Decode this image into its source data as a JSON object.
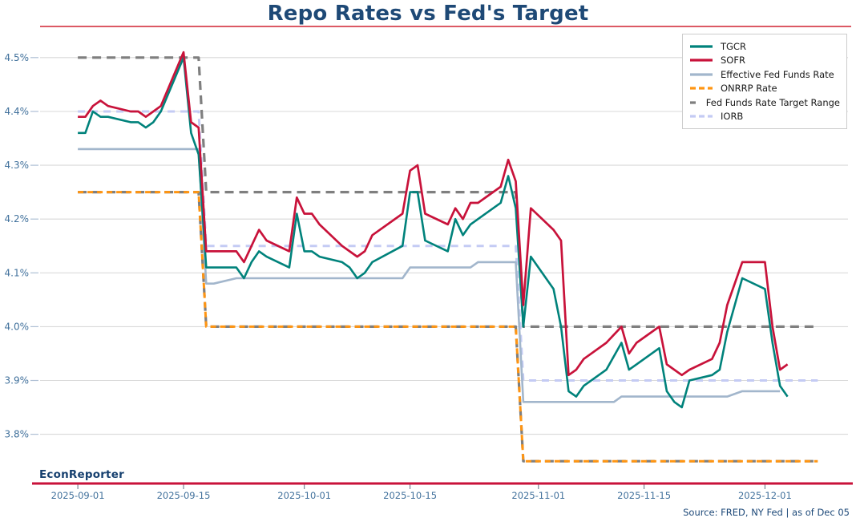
{
  "page": {
    "title": "Repo Rates vs Fed's Target",
    "branding": "EconReporter",
    "source_note": "Source: FRED, NY Fed | as of Dec 05",
    "rule_color": "#dc5964",
    "spine_color": "#c8123a",
    "title_color": "#1e4976",
    "tick_label_color": "#41719c"
  },
  "chart_data": {
    "type": "line",
    "title": "Repo Rates vs Fed's Target",
    "xlabel": "",
    "ylabel": "",
    "grid": "horizontal",
    "legend_position": "upper right",
    "y_axis": {
      "range": [
        3.71,
        4.54
      ],
      "ticks": [
        {
          "value": 3.8,
          "label": "3.8%"
        },
        {
          "value": 3.9,
          "label": "3.9%"
        },
        {
          "value": 4.0,
          "label": "4.0%"
        },
        {
          "value": 4.1,
          "label": "4.1%"
        },
        {
          "value": 4.2,
          "label": "4.2%"
        },
        {
          "value": 4.3,
          "label": "4.3%"
        },
        {
          "value": 4.4,
          "label": "4.4%"
        },
        {
          "value": 4.5,
          "label": "4.5%"
        }
      ]
    },
    "x_axis": {
      "range": [
        "2025-08-27",
        "2025-12-12"
      ],
      "ticks": [
        {
          "date": "2025-09-01",
          "label": "2025-09-01"
        },
        {
          "date": "2025-09-15",
          "label": "2025-09-15"
        },
        {
          "date": "2025-10-01",
          "label": "2025-10-01"
        },
        {
          "date": "2025-10-15",
          "label": "2025-10-15"
        },
        {
          "date": "2025-11-01",
          "label": "2025-11-01"
        },
        {
          "date": "2025-11-15",
          "label": "2025-11-15"
        },
        {
          "date": "2025-12-01",
          "label": "2025-12-01"
        }
      ]
    },
    "series": [
      {
        "name": "TGCR",
        "color": "#00827b",
        "width": 2.6,
        "z": 7,
        "data": [
          [
            "2025-09-01",
            4.36
          ],
          [
            "2025-09-02",
            4.36
          ],
          [
            "2025-09-03",
            4.4
          ],
          [
            "2025-09-04",
            4.39
          ],
          [
            "2025-09-05",
            4.39
          ],
          [
            "2025-09-08",
            4.38
          ],
          [
            "2025-09-09",
            4.38
          ],
          [
            "2025-09-10",
            4.37
          ],
          [
            "2025-09-11",
            4.38
          ],
          [
            "2025-09-12",
            4.4
          ],
          [
            "2025-09-15",
            4.5
          ],
          [
            "2025-09-16",
            4.36
          ],
          [
            "2025-09-17",
            4.32
          ],
          [
            "2025-09-18",
            4.11
          ],
          [
            "2025-09-19",
            4.11
          ],
          [
            "2025-09-22",
            4.11
          ],
          [
            "2025-09-23",
            4.09
          ],
          [
            "2025-09-24",
            4.12
          ],
          [
            "2025-09-25",
            4.14
          ],
          [
            "2025-09-26",
            4.13
          ],
          [
            "2025-09-29",
            4.11
          ],
          [
            "2025-09-30",
            4.21
          ],
          [
            "2025-10-01",
            4.14
          ],
          [
            "2025-10-02",
            4.14
          ],
          [
            "2025-10-03",
            4.13
          ],
          [
            "2025-10-06",
            4.12
          ],
          [
            "2025-10-07",
            4.11
          ],
          [
            "2025-10-08",
            4.09
          ],
          [
            "2025-10-09",
            4.1
          ],
          [
            "2025-10-10",
            4.12
          ],
          [
            "2025-10-14",
            4.15
          ],
          [
            "2025-10-15",
            4.25
          ],
          [
            "2025-10-16",
            4.25
          ],
          [
            "2025-10-17",
            4.16
          ],
          [
            "2025-10-20",
            4.14
          ],
          [
            "2025-10-21",
            4.2
          ],
          [
            "2025-10-22",
            4.17
          ],
          [
            "2025-10-23",
            4.19
          ],
          [
            "2025-10-24",
            4.2
          ],
          [
            "2025-10-27",
            4.23
          ],
          [
            "2025-10-28",
            4.28
          ],
          [
            "2025-10-29",
            4.22
          ],
          [
            "2025-10-30",
            4.0
          ],
          [
            "2025-10-31",
            4.13
          ],
          [
            "2025-11-03",
            4.07
          ],
          [
            "2025-11-04",
            4.0
          ],
          [
            "2025-11-05",
            3.88
          ],
          [
            "2025-11-06",
            3.87
          ],
          [
            "2025-11-07",
            3.89
          ],
          [
            "2025-11-10",
            3.92
          ],
          [
            "2025-11-12",
            3.97
          ],
          [
            "2025-11-13",
            3.92
          ],
          [
            "2025-11-14",
            3.93
          ],
          [
            "2025-11-17",
            3.96
          ],
          [
            "2025-11-18",
            3.88
          ],
          [
            "2025-11-19",
            3.86
          ],
          [
            "2025-11-20",
            3.85
          ],
          [
            "2025-11-21",
            3.9
          ],
          [
            "2025-11-24",
            3.91
          ],
          [
            "2025-11-25",
            3.92
          ],
          [
            "2025-11-26",
            3.99
          ],
          [
            "2025-11-28",
            4.09
          ],
          [
            "2025-12-01",
            4.07
          ],
          [
            "2025-12-02",
            3.97
          ],
          [
            "2025-12-03",
            3.89
          ],
          [
            "2025-12-04",
            3.87
          ]
        ]
      },
      {
        "name": "SOFR",
        "color": "#c8123a",
        "width": 2.7,
        "z": 8,
        "data": [
          [
            "2025-09-01",
            4.39
          ],
          [
            "2025-09-02",
            4.39
          ],
          [
            "2025-09-03",
            4.41
          ],
          [
            "2025-09-04",
            4.42
          ],
          [
            "2025-09-05",
            4.41
          ],
          [
            "2025-09-08",
            4.4
          ],
          [
            "2025-09-09",
            4.4
          ],
          [
            "2025-09-10",
            4.39
          ],
          [
            "2025-09-11",
            4.4
          ],
          [
            "2025-09-12",
            4.41
          ],
          [
            "2025-09-15",
            4.51
          ],
          [
            "2025-09-16",
            4.38
          ],
          [
            "2025-09-17",
            4.37
          ],
          [
            "2025-09-18",
            4.14
          ],
          [
            "2025-09-19",
            4.14
          ],
          [
            "2025-09-22",
            4.14
          ],
          [
            "2025-09-23",
            4.12
          ],
          [
            "2025-09-24",
            4.15
          ],
          [
            "2025-09-25",
            4.18
          ],
          [
            "2025-09-26",
            4.16
          ],
          [
            "2025-09-29",
            4.14
          ],
          [
            "2025-09-30",
            4.24
          ],
          [
            "2025-10-01",
            4.21
          ],
          [
            "2025-10-02",
            4.21
          ],
          [
            "2025-10-03",
            4.19
          ],
          [
            "2025-10-06",
            4.15
          ],
          [
            "2025-10-07",
            4.14
          ],
          [
            "2025-10-08",
            4.13
          ],
          [
            "2025-10-09",
            4.14
          ],
          [
            "2025-10-10",
            4.17
          ],
          [
            "2025-10-14",
            4.21
          ],
          [
            "2025-10-15",
            4.29
          ],
          [
            "2025-10-16",
            4.3
          ],
          [
            "2025-10-17",
            4.21
          ],
          [
            "2025-10-20",
            4.19
          ],
          [
            "2025-10-21",
            4.22
          ],
          [
            "2025-10-22",
            4.2
          ],
          [
            "2025-10-23",
            4.23
          ],
          [
            "2025-10-24",
            4.23
          ],
          [
            "2025-10-27",
            4.26
          ],
          [
            "2025-10-28",
            4.31
          ],
          [
            "2025-10-29",
            4.27
          ],
          [
            "2025-10-30",
            4.04
          ],
          [
            "2025-10-31",
            4.22
          ],
          [
            "2025-11-03",
            4.18
          ],
          [
            "2025-11-04",
            4.16
          ],
          [
            "2025-11-05",
            3.91
          ],
          [
            "2025-11-06",
            3.92
          ],
          [
            "2025-11-07",
            3.94
          ],
          [
            "2025-11-10",
            3.97
          ],
          [
            "2025-11-12",
            4.0
          ],
          [
            "2025-11-13",
            3.95
          ],
          [
            "2025-11-14",
            3.97
          ],
          [
            "2025-11-17",
            4.0
          ],
          [
            "2025-11-18",
            3.93
          ],
          [
            "2025-11-19",
            3.92
          ],
          [
            "2025-11-20",
            3.91
          ],
          [
            "2025-11-21",
            3.92
          ],
          [
            "2025-11-24",
            3.94
          ],
          [
            "2025-11-25",
            3.97
          ],
          [
            "2025-11-26",
            4.04
          ],
          [
            "2025-11-28",
            4.12
          ],
          [
            "2025-12-01",
            4.12
          ],
          [
            "2025-12-02",
            4.0
          ],
          [
            "2025-12-03",
            3.92
          ],
          [
            "2025-12-04",
            3.93
          ]
        ]
      },
      {
        "name": "Effective Fed Funds Rate",
        "color": "#a2b6cc",
        "width": 2.6,
        "z": 6,
        "data": [
          [
            "2025-09-01",
            4.33
          ],
          [
            "2025-09-17",
            4.33
          ],
          [
            "2025-09-18",
            4.08
          ],
          [
            "2025-09-19",
            4.08
          ],
          [
            "2025-09-22",
            4.09
          ],
          [
            "2025-10-14",
            4.09
          ],
          [
            "2025-10-15",
            4.11
          ],
          [
            "2025-10-23",
            4.11
          ],
          [
            "2025-10-24",
            4.12
          ],
          [
            "2025-10-29",
            4.12
          ],
          [
            "2025-10-30",
            3.86
          ],
          [
            "2025-11-11",
            3.86
          ],
          [
            "2025-11-12",
            3.87
          ],
          [
            "2025-11-26",
            3.87
          ],
          [
            "2025-11-28",
            3.88
          ],
          [
            "2025-12-03",
            3.88
          ]
        ]
      },
      {
        "name": "ONRRP Rate",
        "color": "#ff9512",
        "width": 3,
        "dash": "7 5",
        "z": 5,
        "data": [
          [
            "2025-09-01",
            4.25
          ],
          [
            "2025-09-17",
            4.25
          ],
          [
            "2025-09-18",
            4.0
          ],
          [
            "2025-10-29",
            4.0
          ],
          [
            "2025-10-30",
            3.75
          ],
          [
            "2025-12-08",
            3.75
          ]
        ]
      },
      {
        "name": "Fed Funds Rate Target Range",
        "color": "#7f7f7f",
        "width": 3.2,
        "dash": "11 7",
        "z": 3,
        "data": [
          [
            "2025-09-01",
            4.5
          ],
          [
            "2025-09-17",
            4.5
          ],
          [
            "2025-09-18",
            4.25
          ],
          [
            "2025-10-29",
            4.25
          ],
          [
            "2025-10-30",
            4.0
          ],
          [
            "2025-12-08",
            4.0
          ]
        ]
      },
      {
        "name": "IORB",
        "color": "#c4cbf4",
        "width": 3,
        "dash": "9 7",
        "z": 4,
        "data": [
          [
            "2025-09-01",
            4.4
          ],
          [
            "2025-09-17",
            4.4
          ],
          [
            "2025-09-18",
            4.15
          ],
          [
            "2025-10-29",
            4.15
          ],
          [
            "2025-10-30",
            3.9
          ],
          [
            "2025-12-08",
            3.9
          ]
        ]
      },
      {
        "name": "Fed Funds Rate Target Range Lower Bound",
        "color": "#7f7f7f",
        "width": 3.2,
        "dash": "11 7",
        "z": 2,
        "legend": false,
        "data": [
          [
            "2025-09-01",
            4.25
          ],
          [
            "2025-09-17",
            4.25
          ],
          [
            "2025-09-18",
            4.0
          ],
          [
            "2025-10-29",
            4.0
          ],
          [
            "2025-10-30",
            3.75
          ],
          [
            "2025-12-08",
            3.75
          ]
        ]
      }
    ]
  }
}
